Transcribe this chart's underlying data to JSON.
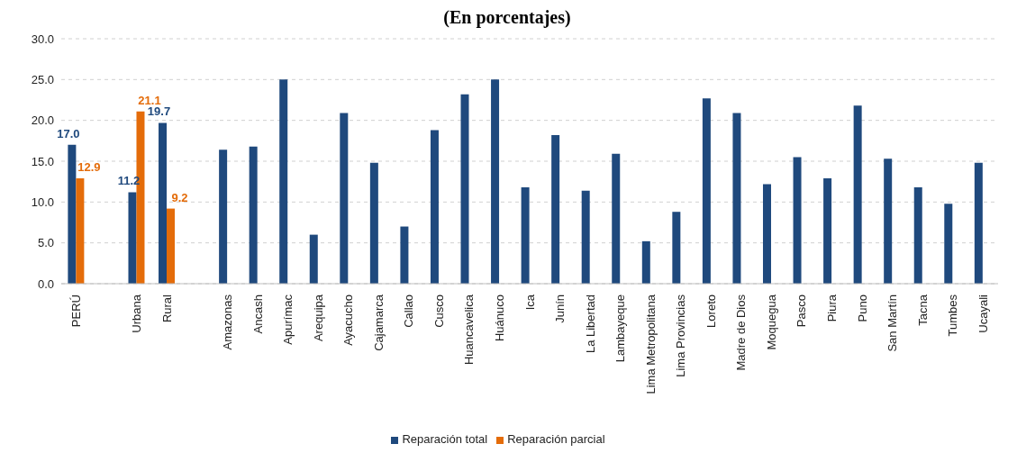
{
  "chart_data": {
    "type": "bar",
    "title": "(En porcentajes)",
    "categories": [
      "PERÚ",
      null,
      "Urbana",
      "Rural",
      null,
      "Amazonas",
      "Ancash",
      "Apurímac",
      "Arequipa",
      "Ayacucho",
      "Cajamarca",
      "Callao",
      "Cusco",
      "Huancavelica",
      "Huánuco",
      "Ica",
      "Junín",
      "La Libertad",
      "Lambayeque",
      "Lima Metropolitana",
      "Lima Provincias",
      "Loreto",
      "Madre de Dios",
      "Moquegua",
      "Pasco",
      "Piura",
      "Puno",
      "San Martín",
      "Tacna",
      "Tumbes",
      "Ucayali"
    ],
    "series": [
      {
        "name": "Reparación total",
        "color": "#1f497d",
        "values": [
          17.0,
          null,
          11.2,
          19.7,
          null,
          16.4,
          16.8,
          25.0,
          6.0,
          20.9,
          14.8,
          7.0,
          18.8,
          23.2,
          25.0,
          11.8,
          18.2,
          11.4,
          15.9,
          5.2,
          8.8,
          22.7,
          20.9,
          12.2,
          15.5,
          12.9,
          21.8,
          15.3,
          11.8,
          9.8,
          14.8
        ],
        "value_labels": [
          "17.0",
          null,
          "11.2",
          "19.7",
          null,
          null,
          null,
          null,
          null,
          null,
          null,
          null,
          null,
          null,
          null,
          null,
          null,
          null,
          null,
          null,
          null,
          null,
          null,
          null,
          null,
          null,
          null,
          null,
          null,
          null,
          null
        ]
      },
      {
        "name": "Reparación parcial",
        "color": "#e46c0a",
        "values": [
          12.9,
          null,
          21.1,
          9.2,
          null,
          null,
          null,
          null,
          null,
          null,
          null,
          null,
          null,
          null,
          null,
          null,
          null,
          null,
          null,
          null,
          null,
          null,
          null,
          null,
          null,
          null,
          null,
          null,
          null,
          null,
          null
        ],
        "value_labels": [
          "12.9",
          null,
          "21.1",
          "9.2",
          null,
          null,
          null,
          null,
          null,
          null,
          null,
          null,
          null,
          null,
          null,
          null,
          null,
          null,
          null,
          null,
          null,
          null,
          null,
          null,
          null,
          null,
          null,
          null,
          null,
          null,
          null
        ]
      }
    ],
    "ylim": [
      0,
      30
    ],
    "yticks": [
      {
        "value": 0,
        "label": "0.0"
      },
      {
        "value": 5,
        "label": "5.0"
      },
      {
        "value": 10,
        "label": "10.0"
      },
      {
        "value": 15,
        "label": "15.0"
      },
      {
        "value": 20,
        "label": "20.0"
      },
      {
        "value": 25,
        "label": "25.0"
      },
      {
        "value": 30,
        "label": "30.0"
      }
    ],
    "grid": "y",
    "legend": "bottom"
  }
}
